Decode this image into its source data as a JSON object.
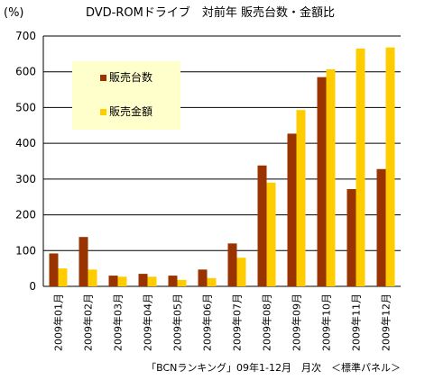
{
  "chart_data": {
    "type": "bar",
    "title": "DVD-ROMドライブ　対前年 販売台数・金額比",
    "ylabel": "(%)",
    "ylim": [
      0,
      700
    ],
    "yticks": [
      0,
      100,
      200,
      300,
      400,
      500,
      600,
      700
    ],
    "grid": true,
    "legend_position": "top-left",
    "categories": [
      "2009年01月",
      "2009年02月",
      "2009年03月",
      "2009年04月",
      "2009年05月",
      "2009年06月",
      "2009年07月",
      "2009年08月",
      "2009年09月",
      "2009年10月",
      "2009年11月",
      "2009年12月"
    ],
    "series": [
      {
        "name": "販売台数",
        "color": "#993300",
        "values": [
          92,
          138,
          30,
          35,
          30,
          47,
          120,
          338,
          427,
          585,
          272,
          328
        ]
      },
      {
        "name": "販売金額",
        "color": "#ffcc00",
        "values": [
          50,
          47,
          27,
          27,
          18,
          23,
          80,
          290,
          493,
          607,
          665,
          668
        ]
      }
    ],
    "source": "「BCNランキング」09年1-12月　月次　＜標準パネル＞"
  },
  "colors": {
    "legend_bg": "#ffffcc",
    "axis": "#000000",
    "gridline": "#000000"
  }
}
